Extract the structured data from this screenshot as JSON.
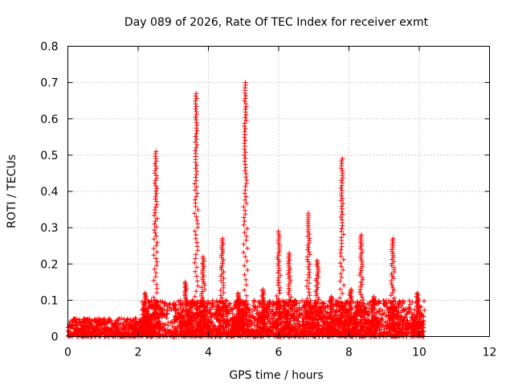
{
  "chart_data": {
    "type": "scatter",
    "title": "Day 089 of 2026, Rate Of TEC Index for receiver exmt",
    "xlabel": "GPS time / hours",
    "ylabel": "ROTI / TECUs",
    "xlim": [
      0,
      12
    ],
    "ylim": [
      0,
      0.8
    ],
    "x_ticks": [
      0,
      2,
      4,
      6,
      8,
      10,
      12
    ],
    "x_tick_labels": [
      "0",
      "2",
      "4",
      "6",
      "8",
      "10",
      "12"
    ],
    "y_ticks": [
      0,
      0.1,
      0.2,
      0.3,
      0.4,
      0.5,
      0.6,
      0.7,
      0.8
    ],
    "y_tick_labels": [
      "0",
      "0.1",
      "0.2",
      "0.3",
      "0.4",
      "0.5",
      "0.6",
      "0.7",
      "0.8"
    ],
    "grid": true,
    "marker": "plus",
    "marker_color": "#ff0000",
    "data_x_range": [
      0.0,
      10.15
    ],
    "baseline_band": [
      {
        "x": [
          0.0,
          2.1
        ],
        "y": [
          0.0,
          0.05
        ]
      },
      {
        "x": [
          2.1,
          10.15
        ],
        "y": [
          0.0,
          0.1
        ]
      }
    ],
    "spikes": [
      {
        "x": 2.2,
        "peak": 0.12
      },
      {
        "x": 2.5,
        "peak": 0.51
      },
      {
        "x": 3.35,
        "peak": 0.15
      },
      {
        "x": 3.65,
        "peak": 0.67
      },
      {
        "x": 3.85,
        "peak": 0.22
      },
      {
        "x": 4.4,
        "peak": 0.27
      },
      {
        "x": 4.85,
        "peak": 0.12
      },
      {
        "x": 5.05,
        "peak": 0.7
      },
      {
        "x": 5.55,
        "peak": 0.13
      },
      {
        "x": 6.0,
        "peak": 0.29
      },
      {
        "x": 6.3,
        "peak": 0.23
      },
      {
        "x": 6.85,
        "peak": 0.34
      },
      {
        "x": 7.1,
        "peak": 0.21
      },
      {
        "x": 7.5,
        "peak": 0.11
      },
      {
        "x": 7.8,
        "peak": 0.49
      },
      {
        "x": 8.05,
        "peak": 0.13
      },
      {
        "x": 8.35,
        "peak": 0.28
      },
      {
        "x": 8.7,
        "peak": 0.11
      },
      {
        "x": 9.25,
        "peak": 0.27
      },
      {
        "x": 9.95,
        "peak": 0.12
      }
    ]
  }
}
